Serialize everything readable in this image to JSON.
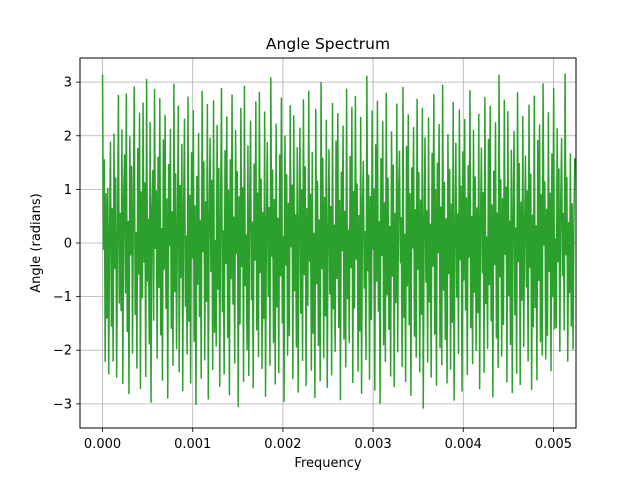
{
  "chart_data": {
    "type": "line",
    "title": "Angle Spectrum",
    "xlabel": "Frequency",
    "ylabel": "Angle (radians)",
    "xlim": [
      -0.00025,
      0.00525
    ],
    "ylim": [
      -3.45,
      3.45
    ],
    "xticks": [
      0.0,
      0.001,
      0.002,
      0.003,
      0.004,
      0.005
    ],
    "xtick_labels": [
      "0.000",
      "0.001",
      "0.002",
      "0.003",
      "0.004",
      "0.005"
    ],
    "yticks": [
      -3,
      -2,
      -1,
      0,
      1,
      2,
      3
    ],
    "ytick_labels": [
      "−3",
      "−2",
      "−1",
      "0",
      "1",
      "2",
      "3"
    ],
    "grid": true,
    "series": [
      {
        "color": "#2ca02c",
        "x_start": 0.0,
        "x_step": 9.77e-06,
        "values": [
          3.14,
          -0.12,
          1.55,
          -2.21,
          0.92,
          -1.4,
          1.02,
          -2.44,
          0.31,
          1.88,
          -1.55,
          0.64,
          -2.2,
          2.03,
          -0.47,
          1.21,
          -2.5,
          0.08,
          2.75,
          -1.12,
          0.55,
          -1.26,
          2.11,
          -2.62,
          0.88,
          1.64,
          -0.93,
          2.78,
          -1.65,
          0.4,
          -2.81,
          1.98,
          -0.22,
          1.43,
          -2.05,
          0.71,
          2.91,
          -1.33,
          0.19,
          -2.33,
          1.76,
          -0.58,
          2.42,
          -2.71,
          0.95,
          -1.02,
          2.61,
          -0.36,
          1.12,
          -2.49,
          3.05,
          -0.71,
          0.44,
          -1.88,
          2.25,
          -2.97,
          0.63,
          1.35,
          -1.44,
          2.86,
          -0.1,
          0.97,
          -2.15,
          1.6,
          -0.83,
          2.69,
          -1.71,
          0.27,
          -2.56,
          1.92,
          -0.49,
          2.38,
          -1.22,
          0.82,
          -2.89,
          1.46,
          -0.05,
          2.12,
          -1.59,
          0.58,
          -2.28,
          2.96,
          -0.91,
          1.29,
          -1.97,
          0.36,
          2.55,
          -2.4,
          1.07,
          -0.64,
          1.84,
          -2.75,
          0.5,
          2.31,
          -1.18,
          0.13,
          -2.07,
          2.72,
          -1.46,
          0.89,
          -2.61,
          1.68,
          -0.28,
          2.47,
          -1.83,
          0.69,
          -3.01,
          1.24,
          -0.77,
          2.04,
          -1.37,
          0.42,
          -2.52,
          2.83,
          -0.16,
          1.51,
          -2.18,
          0.77,
          -1.09,
          2.58,
          -2.91,
          0.34,
          1.95,
          -0.53,
          1.17,
          -2.36,
          2.65,
          -1.67,
          0.05,
          -1.92,
          2.19,
          -0.86,
          1.39,
          -2.67,
          0.61,
          2.88,
          -1.28,
          0.23,
          -2.44,
          1.72,
          -0.38,
          2.35,
          -1.76,
          0.98,
          -2.83,
          1.55,
          -0.67,
          2.76,
          -1.14,
          0.48,
          -2.24,
          2.09,
          -0.19,
          1.33,
          -3.05,
          0.86,
          -1.51,
          2.51,
          -0.44,
          1.03,
          -2.58,
          2.92,
          -0.79,
          0.15,
          -1.99,
          1.81,
          -2.47,
          0.72,
          2.27,
          -1.06,
          0.39,
          -2.7,
          1.47,
          -0.32,
          2.63,
          -1.62,
          0.93,
          -2.12,
          2.81,
          -0.55,
          1.19,
          -2.34,
          0.57,
          -1.41,
          2.44,
          -2.86,
          0.29,
          1.87,
          -0.99,
          0.66,
          -2.28,
          3.08,
          -0.25,
          1.36,
          -1.85,
          0.81,
          -2.63,
          2.22,
          -1.19,
          0.46,
          -2.42,
          1.64,
          -0.61,
          2.7,
          -1.49,
          0.12,
          -2.95,
          1.99,
          -0.41,
          1.27,
          -2.09,
          0.74,
          -1.73,
          2.56,
          -0.07,
          1.08,
          -2.53,
          2.37,
          -0.89,
          0.53,
          -1.94,
          1.78,
          -2.78,
          0.37,
          2.14,
          -1.31,
          0.99,
          -2.19,
          2.67,
          -0.59,
          1.42,
          -2.66,
          0.64,
          -1.16,
          2.83,
          -0.34,
          0.91,
          -2.37,
          1.69,
          -1.68,
          0.18,
          -2.88,
          2.49,
          -0.76,
          1.15,
          -1.91,
          0.43,
          -2.57,
          2.99,
          -0.48,
          1.58,
          -2.14,
          0.85,
          -1.36,
          2.29,
          -2.69,
          0.1,
          1.74,
          -0.95,
          0.68,
          -2.46,
          2.6,
          -1.23,
          0.33,
          -2.02,
          1.9,
          -0.66,
          2.41,
          -1.57,
          0.79,
          -2.92,
          1.32,
          -0.14,
          2.18,
          -1.79,
          0.59,
          -2.31,
          2.87,
          -1.04,
          0.24,
          -1.86,
          1.61,
          -0.46,
          2.53,
          -2.6,
          0.96,
          -1.21,
          2.73,
          -0.3,
          1.1,
          -2.39,
          0.51,
          -1.64,
          2.34,
          -2.8,
          0.7,
          1.52,
          -0.84,
          0.21,
          -2.17,
          3.11,
          -0.52,
          1.26,
          -2.54,
          0.87,
          -1.43,
          2.46,
          -0.12,
          1.01,
          -2.74,
          1.83,
          -0.71,
          2.64,
          -1.27,
          0.4,
          -2.99,
          1.57,
          -0.23,
          2.26,
          -1.9,
          0.75,
          -2.21,
          2.79,
          -0.97,
          1.21,
          -1.61,
          0.31,
          -2.48,
          2.07,
          -0.62,
          1.45,
          -2.68,
          0.55,
          -1.11,
          2.59,
          -2.03,
          0.88,
          1.71,
          -0.37,
          0.47,
          -2.3,
          2.9,
          -1.39,
          0.16,
          -2.58,
          1.8,
          -0.8,
          2.39,
          -1.53,
          0.92,
          -2.84,
          1.4,
          -0.09,
          2.15,
          -1.74,
          0.62,
          -2.13,
          2.68,
          -0.49,
          1.31,
          -2.4,
          0.8,
          -1.33,
          2.51,
          -3.08,
          0.26,
          1.96,
          -0.73,
          0.6,
          -2.22,
          2.33,
          -1.1,
          0.35,
          -2.5,
          1.67,
          -0.43,
          2.77,
          -1.7,
          1.0,
          -2.65,
          1.49,
          -0.18,
          2.21,
          -1.95,
          0.67,
          -2.27,
          2.94,
          -0.88,
          1.13,
          -1.8,
          0.45,
          -2.61,
          2.02,
          -0.57,
          1.37,
          -2.35,
          0.73,
          -1.48,
          2.62,
          -2.93,
          0.2,
          1.86,
          -1.01,
          0.54,
          -2.06,
          2.48,
          -0.31,
          1.06,
          -2.76,
          1.7,
          -0.69,
          2.3,
          -1.25,
          0.84,
          -2.45,
          1.44,
          -0.26,
          2.84,
          -1.58,
          0.49,
          -2.25,
          2.1,
          -0.92,
          1.23,
          -2.0,
          0.65,
          -1.3,
          2.4,
          -2.72,
          0.38,
          1.77,
          -0.56,
          0.94,
          -2.41,
          2.71,
          -1.13,
          0.11,
          -1.96,
          1.93,
          -0.78,
          2.55,
          -1.45,
          0.71,
          -2.87,
          1.34,
          -0.4,
          2.24,
          -1.77,
          0.56,
          -2.32,
          3.13,
          -0.63,
          1.18,
          -2.11,
          0.83,
          -1.52,
          2.66,
          -0.21,
          1.04,
          -2.59,
          2.45,
          -0.98,
          0.41,
          -1.89,
          1.73,
          -2.79,
          0.6,
          2.08,
          -1.34,
          0.28,
          -2.43,
          2.8,
          -0.35,
          1.48,
          -2.64,
          0.76,
          -1.07,
          2.36,
          -1.93,
          0.19,
          1.62,
          -0.82,
          0.97,
          -2.2,
          2.57,
          -0.45,
          1.28,
          -2.73,
          0.52,
          -1.56,
          2.74,
          -1.2,
          0.32,
          -2.55,
          1.91,
          -0.7,
          2.2,
          -1.84,
          0.9,
          -2.09,
          2.97,
          -0.04,
          1.14,
          -2.16,
          0.63,
          -1.72,
          2.43,
          -0.53,
          0.93,
          -2.38,
          1.66,
          -1.0,
          2.88,
          -1.6,
          0.08,
          -1.58,
          2.13,
          -0.35,
          1.38,
          -2.02,
          0.7,
          1.95,
          -0.61,
          0.55,
          -1.62,
          3.15,
          -0.22,
          1.22,
          -2.2,
          0.38,
          -0.93,
          1.66,
          -1.55,
          0.73,
          -1.98,
          0.41,
          1.58
        ]
      }
    ]
  }
}
